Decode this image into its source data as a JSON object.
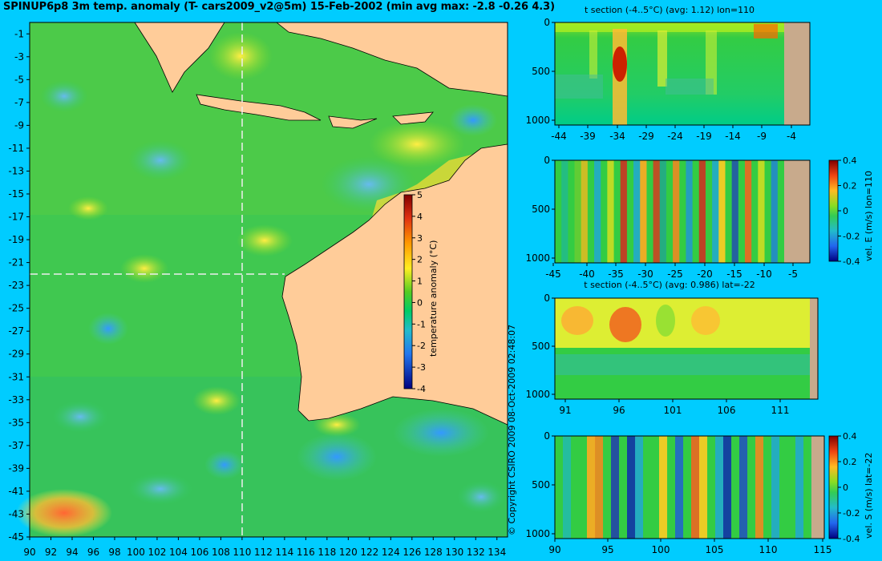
{
  "header": {
    "title": "SPINUP6p8 3m temp. anomaly (T- cars2009_v2@5m) 15-Feb-2002 (min avg max: -2.8 -0.26 4.3)"
  },
  "copyright": "© Copyright CSIRO 2009   08-Oct-2009 02:48:07",
  "colors": {
    "background": "#00ccff",
    "land": "#ffcc99",
    "section_land": "#c8aa8c"
  },
  "chart_data": [
    {
      "id": "map",
      "type": "heatmap",
      "title": "SPINUP6p8 3m temp. anomaly (T- cars2009_v2@5m) 15-Feb-2002 (min avg max: -2.8 -0.26 4.3)",
      "x_ticks": [
        "90",
        "92",
        "94",
        "96",
        "98",
        "100",
        "102",
        "104",
        "106",
        "108",
        "110",
        "112",
        "114",
        "116",
        "118",
        "120",
        "122",
        "124",
        "126",
        "128",
        "130",
        "132",
        "134"
      ],
      "y_ticks": [
        "-1",
        "-3",
        "-5",
        "-7",
        "-9",
        "-11",
        "-13",
        "-15",
        "-17",
        "-19",
        "-21",
        "-23",
        "-25",
        "-27",
        "-29",
        "-31",
        "-33",
        "-35",
        "-37",
        "-39",
        "-41",
        "-43",
        "-45"
      ],
      "xlim": [
        90,
        135
      ],
      "ylim": [
        -45,
        0
      ],
      "section_lines": {
        "lon": 110,
        "lat": -22
      },
      "colorbar": {
        "label": "temperature anomaly (°C)",
        "ticks": [
          "5",
          "4",
          "3",
          "2",
          "1",
          "0",
          "-1",
          "-2",
          "-3",
          "-4"
        ],
        "range": [
          -4,
          5
        ]
      }
    },
    {
      "id": "t-section-lon",
      "type": "heatmap",
      "title": "t section (-4..5°C) (avg: 1.12) lon=110",
      "x_ticks": [
        "-44",
        "-39",
        "-34",
        "-29",
        "-24",
        "-19",
        "-14",
        "-9",
        "-4"
      ],
      "y_ticks": [
        "0",
        "500",
        "1000"
      ]
    },
    {
      "id": "vel-e-section",
      "type": "heatmap",
      "title": "",
      "x_ticks": [
        "-45",
        "-40",
        "-35",
        "-30",
        "-25",
        "-20",
        "-15",
        "-10",
        "-5"
      ],
      "y_ticks": [
        "0",
        "500",
        "1000"
      ],
      "colorbar": {
        "label": "vel. E (m/s) lon=110",
        "ticks": [
          "0.4",
          "0.2",
          "0",
          "-0.2",
          "-0.4"
        ],
        "range": [
          -0.4,
          0.4
        ]
      }
    },
    {
      "id": "t-section-lat",
      "type": "heatmap",
      "title": "t section (-4..5°C) (avg: 0.986) lat=-22",
      "x_ticks": [
        "91",
        "96",
        "101",
        "106",
        "111"
      ],
      "y_ticks": [
        "0",
        "500",
        "1000"
      ]
    },
    {
      "id": "vel-s-section",
      "type": "heatmap",
      "title": "",
      "x_ticks": [
        "90",
        "95",
        "100",
        "105",
        "110",
        "115"
      ],
      "y_ticks": [
        "0",
        "500",
        "1000"
      ],
      "colorbar": {
        "label": "vel. S (m/s) lat=-22",
        "ticks": [
          "0.4",
          "0.2",
          "0",
          "-0.2",
          "-0.4"
        ],
        "range": [
          -0.4,
          0.4
        ]
      }
    }
  ]
}
